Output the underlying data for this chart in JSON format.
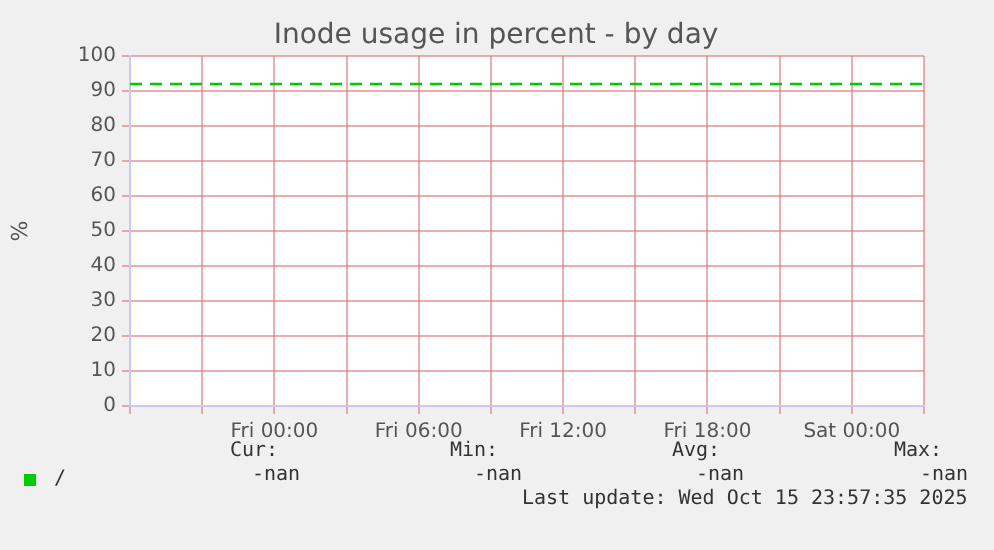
{
  "chart_data": {
    "type": "line",
    "title": "Inode usage in percent - by day",
    "ylabel": "%",
    "categories": [
      null,
      null,
      "Fri 00:00",
      null,
      "Fri 06:00",
      null,
      "Fri 12:00",
      null,
      "Fri 18:00",
      null,
      "Sat 00:00",
      null
    ],
    "series": [
      {
        "name": "/",
        "color": "#00cc00",
        "values": [
          92,
          92,
          92,
          92,
          92,
          92,
          92,
          92,
          92,
          92,
          92,
          92
        ],
        "line_style": "dashed"
      }
    ],
    "ylim": [
      0,
      100
    ],
    "yticks": [
      0,
      10,
      20,
      30,
      40,
      50,
      60,
      70,
      80,
      90,
      100
    ],
    "grid": true,
    "marker": "none",
    "legend": "bottom left",
    "annotations": [
      "Cur:",
      "Min:",
      "Avg:",
      "Max:",
      "-nan",
      "-nan",
      "-nan",
      "-nan",
      "Last update: Wed Oct 15 23:57:35 2025"
    ]
  }
}
